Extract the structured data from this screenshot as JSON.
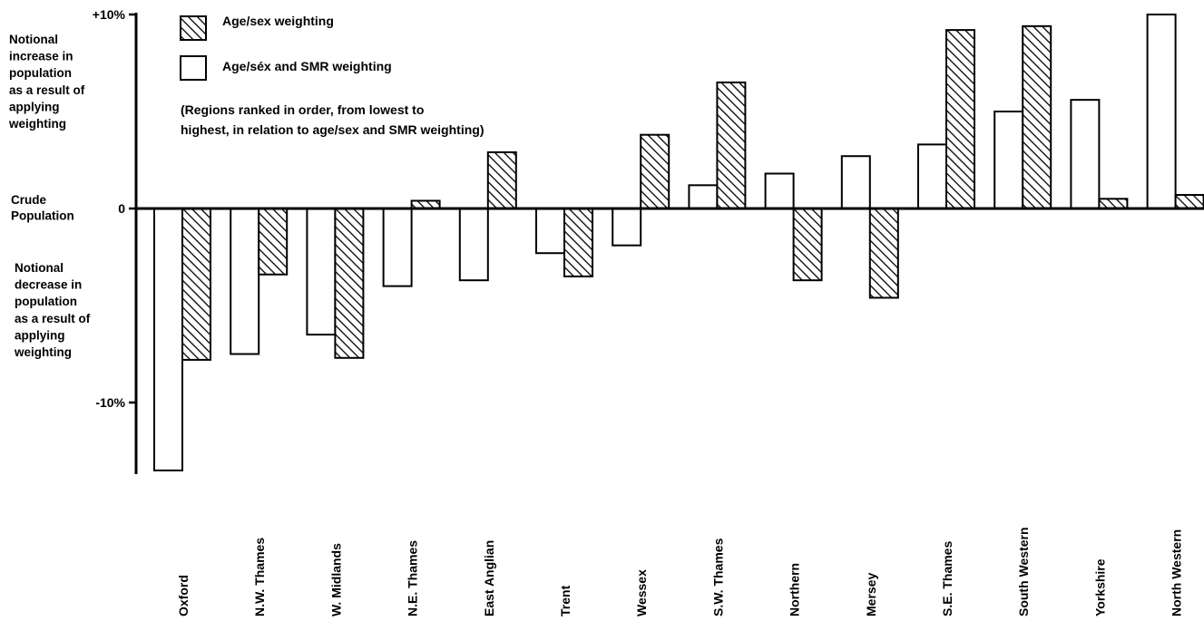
{
  "chart_data": {
    "type": "bar",
    "categories": [
      "Oxford",
      "N.W. Thames",
      "W. Midlands",
      "N.E. Thames",
      "East Anglian",
      "Trent",
      "Wessex",
      "S.W. Thames",
      "Northern",
      "Mersey",
      "S.E. Thames",
      "South Western",
      "Yorkshire",
      "North Western"
    ],
    "series": [
      {
        "name": "Age/sex and SMR weighting",
        "style": "open",
        "values": [
          -13.5,
          -7.5,
          -6.5,
          -4.0,
          -3.7,
          -2.3,
          -1.9,
          1.2,
          1.8,
          2.7,
          3.3,
          5.0,
          5.6,
          10.0
        ]
      },
      {
        "name": "Age/sex weighting",
        "style": "hatched",
        "values": [
          -7.8,
          -3.4,
          -7.7,
          0.4,
          2.9,
          -3.5,
          3.8,
          6.5,
          -3.7,
          -4.6,
          9.2,
          9.4,
          0.5,
          0.7
        ]
      }
    ],
    "ylim": [
      -14,
      10
    ],
    "yticks": [
      {
        "value": 10,
        "label": "+10%"
      },
      {
        "value": 0,
        "label": "0"
      },
      {
        "value": -10,
        "label": "-10%"
      }
    ],
    "legend": {
      "placement": "top-left",
      "items": [
        {
          "label": "Age/sex weighting",
          "style": "hatched"
        },
        {
          "label": "Age/séx and SMR weighting",
          "style": "open"
        }
      ]
    },
    "note": [
      "(Regions ranked in order, from lowest to",
      "highest, in relation to age/sex and SMR weighting)"
    ],
    "axis_annotations": {
      "increase": [
        "Notional",
        "increase in",
        "population",
        "as a result of",
        "applying",
        "weighting"
      ],
      "crude": [
        "Crude",
        "Population"
      ],
      "decrease": [
        "Notional",
        "decrease in",
        "population",
        "as a result of",
        "applying",
        "weighting"
      ]
    },
    "grid": false,
    "colors": {
      "bar_fill": "#ffffff",
      "stroke": "#000000",
      "hatch": "#000000"
    }
  }
}
